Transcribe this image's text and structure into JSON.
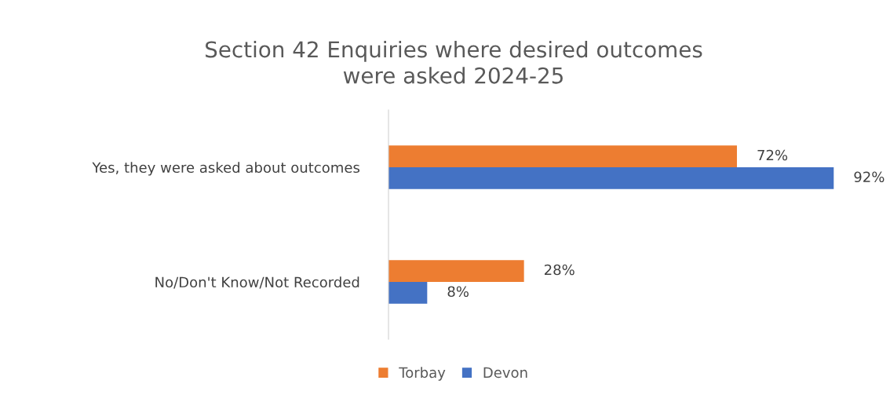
{
  "chart_data": {
    "type": "bar",
    "orientation": "horizontal",
    "title": "Section 42 Enquiries where desired outcomes\nwere asked 2024-25",
    "categories": [
      "Yes, they were asked about outcomes",
      "No/Don't Know/Not Recorded"
    ],
    "series": [
      {
        "name": "Torbay",
        "color": "#ed7d31",
        "values": [
          72,
          28
        ],
        "value_labels": [
          "72%",
          "28%"
        ]
      },
      {
        "name": "Devon",
        "color": "#4472c4",
        "values": [
          92,
          8
        ],
        "value_labels": [
          "92%",
          "8%"
        ]
      }
    ],
    "legend": "bottom",
    "grid": false
  }
}
